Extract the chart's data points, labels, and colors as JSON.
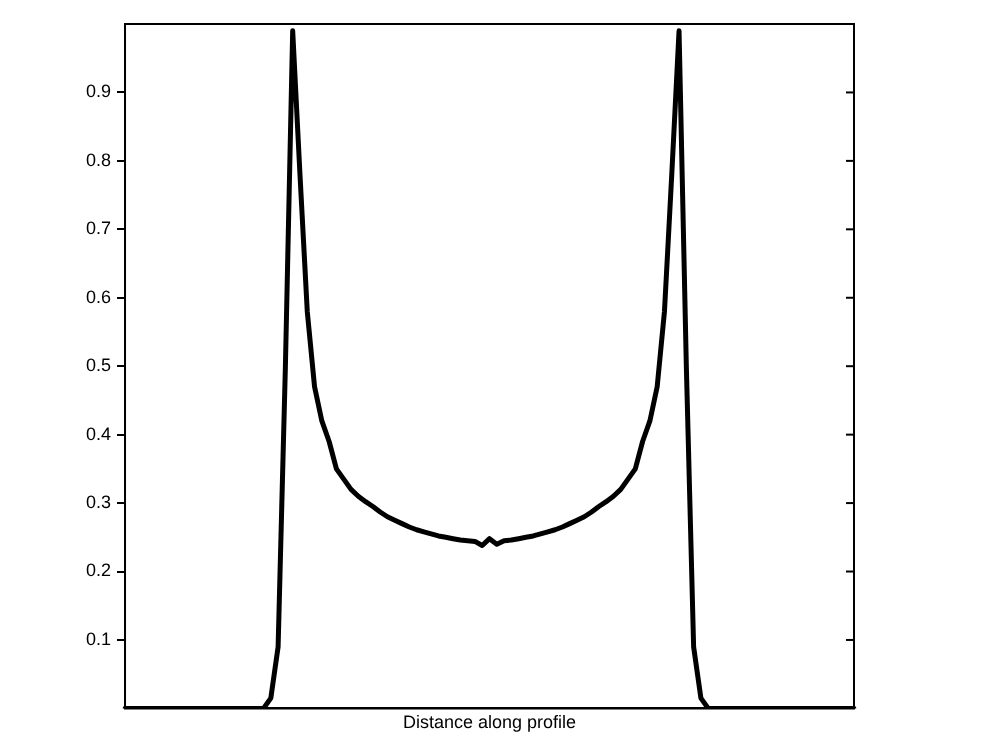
{
  "chart_data": {
    "type": "line",
    "xlabel": "Distance along profile",
    "categories": [
      null,
      null,
      null,
      null,
      null,
      null,
      null,
      null,
      null,
      null,
      null,
      null,
      null,
      null,
      null,
      null,
      null,
      null,
      null,
      null,
      null,
      null,
      null,
      null,
      null,
      null,
      null,
      null,
      null,
      null,
      null,
      null,
      null,
      null,
      null,
      null,
      null,
      null,
      null,
      null,
      null,
      null,
      null,
      null,
      null,
      null,
      null,
      null,
      null,
      null,
      null,
      null,
      null,
      null,
      null,
      null,
      null,
      null,
      null,
      null,
      null,
      null,
      null,
      null,
      null,
      null,
      null,
      null,
      null,
      null,
      null,
      null,
      null,
      null,
      null,
      null,
      null,
      null,
      null,
      null,
      null,
      null,
      null,
      null,
      null,
      null,
      null,
      null,
      null,
      null,
      null,
      null,
      null,
      null,
      null,
      null,
      null,
      null,
      null,
      null,
      null
    ],
    "series": [
      {
        "color": "#000000",
        "values": [
          0,
          0,
          0,
          0,
          0,
          0,
          0,
          0,
          0,
          0,
          0,
          0,
          0,
          0,
          0,
          0,
          0,
          0,
          0,
          0,
          0.015,
          0.09,
          0.5,
          0.99,
          0.78,
          0.58,
          0.47,
          0.42,
          0.39,
          0.35,
          0.335,
          0.32,
          0.31,
          0.302,
          0.295,
          0.287,
          0.28,
          0.275,
          0.27,
          0.265,
          0.261,
          0.258,
          0.255,
          0.252,
          0.25,
          0.248,
          0.246,
          0.245,
          0.244,
          0.238,
          0.248,
          0.24,
          0.245,
          0.246,
          0.248,
          0.25,
          0.252,
          0.255,
          0.258,
          0.261,
          0.265,
          0.27,
          0.275,
          0.28,
          0.287,
          0.295,
          0.302,
          0.31,
          0.32,
          0.335,
          0.35,
          0.39,
          0.42,
          0.47,
          0.58,
          0.78,
          0.99,
          0.5,
          0.09,
          0.015,
          0,
          0,
          0,
          0,
          0,
          0,
          0,
          0,
          0,
          0,
          0,
          0,
          0,
          0,
          0,
          0,
          0,
          0,
          0,
          0,
          0
        ]
      }
    ],
    "ylim": [
      0,
      1
    ],
    "yticks": [
      0.1,
      0.2,
      0.3,
      0.4,
      0.5,
      0.6,
      0.7,
      0.8,
      0.9
    ],
    "tick_labels": "y",
    "grid": false,
    "legend": false,
    "marker": "none",
    "line_style": "solid"
  }
}
